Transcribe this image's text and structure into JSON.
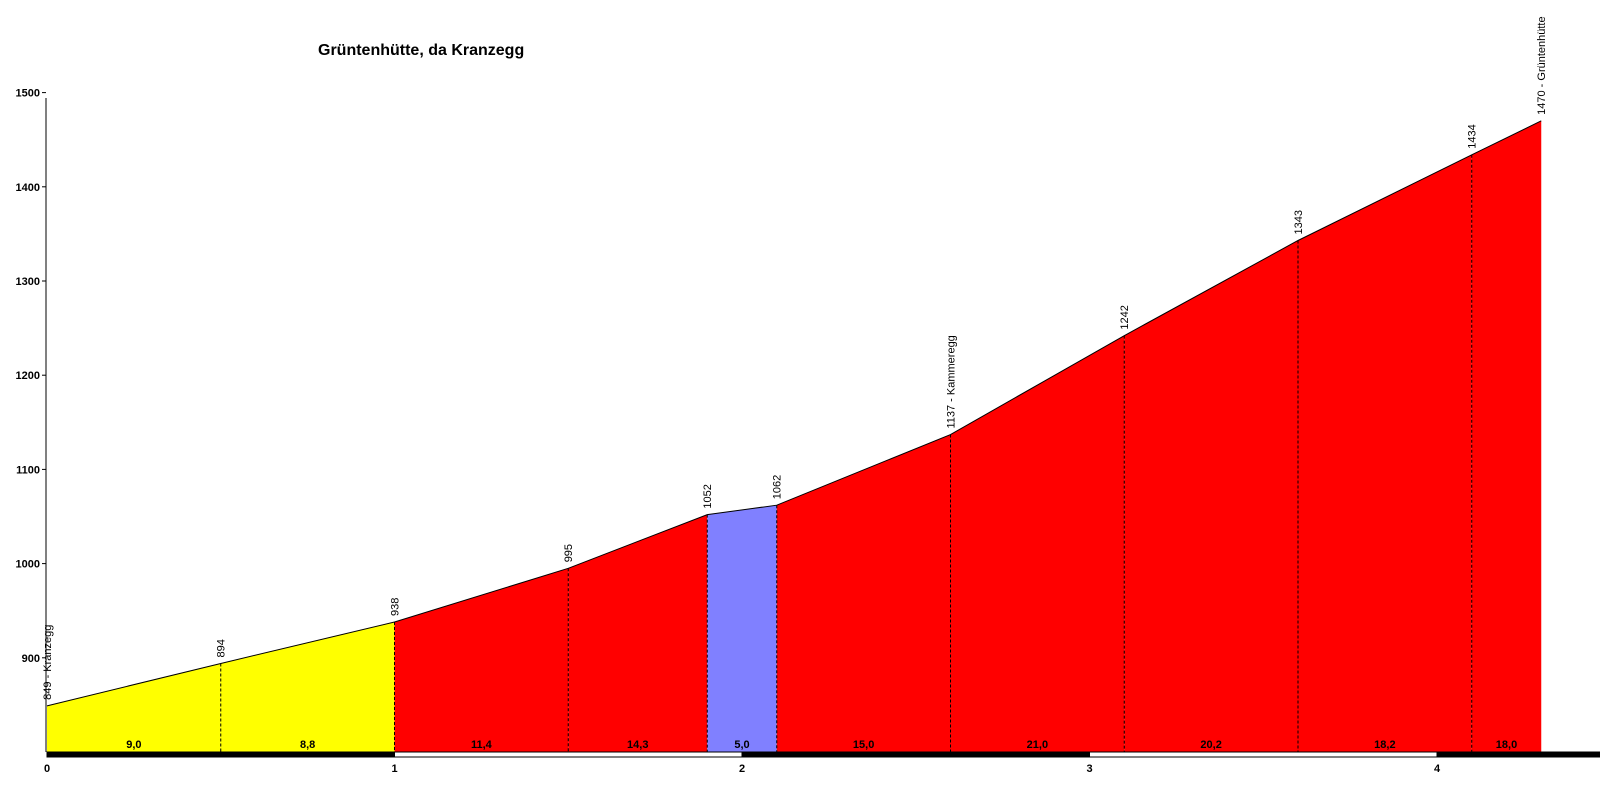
{
  "chart_data": {
    "type": "area",
    "title": "Grüntenhütte, da Kranzegg",
    "xlabel": "",
    "ylabel": "",
    "xlim": [
      0,
      4.3
    ],
    "ylim": [
      800,
      1500
    ],
    "y_ticks": [
      "900",
      "1000",
      "1100",
      "1200",
      "1300",
      "1400",
      "1500"
    ],
    "x_ticks": [
      "0",
      "1",
      "2",
      "3",
      "4"
    ],
    "points": [
      {
        "km": 0.0,
        "elevation": 849,
        "label": "849 - Kranzegg"
      },
      {
        "km": 0.5,
        "elevation": 894,
        "label": "894"
      },
      {
        "km": 1.0,
        "elevation": 938,
        "label": "938"
      },
      {
        "km": 1.5,
        "elevation": 995,
        "label": "995"
      },
      {
        "km": 1.9,
        "elevation": 1052,
        "label": "1052"
      },
      {
        "km": 2.1,
        "elevation": 1062,
        "label": "1062"
      },
      {
        "km": 2.6,
        "elevation": 1137,
        "label": "1137 - Kammeregg"
      },
      {
        "km": 3.1,
        "elevation": 1242,
        "label": "1242"
      },
      {
        "km": 3.6,
        "elevation": 1343,
        "label": "1343"
      },
      {
        "km": 4.1,
        "elevation": 1434,
        "label": "1434"
      },
      {
        "km": 4.3,
        "elevation": 1470,
        "label": "1470 - Grüntenhütte"
      }
    ],
    "segments": [
      {
        "gradient": "9,0",
        "color": "#ffff00"
      },
      {
        "gradient": "8,8",
        "color": "#ffff00"
      },
      {
        "gradient": "11,4",
        "color": "#ff0000"
      },
      {
        "gradient": "14,3",
        "color": "#ff0000"
      },
      {
        "gradient": "5,0",
        "color": "#8080ff"
      },
      {
        "gradient": "15,0",
        "color": "#ff0000"
      },
      {
        "gradient": "21,0",
        "color": "#ff0000"
      },
      {
        "gradient": "20,2",
        "color": "#ff0000"
      },
      {
        "gradient": "18,2",
        "color": "#ff0000"
      },
      {
        "gradient": "18,0",
        "color": "#ff0000"
      }
    ],
    "grid": false,
    "legend": "none"
  }
}
